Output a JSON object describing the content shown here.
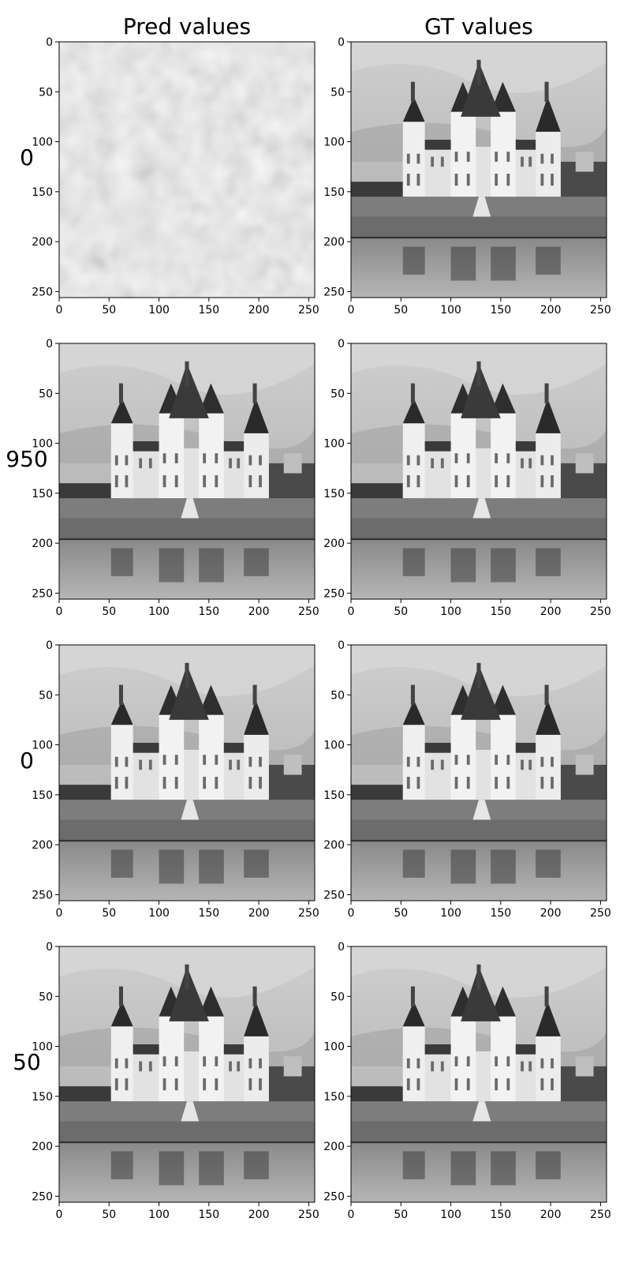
{
  "chart_data": {
    "type": "heatmap",
    "columns": [
      "Pred values",
      "GT values"
    ],
    "rows": [
      {
        "label": "0",
        "panels": [
          {
            "column": "Pred values",
            "content": "noise",
            "xlim": [
              0,
              256
            ],
            "ylim": [
              256,
              0
            ]
          },
          {
            "column": "GT values",
            "content": "castle",
            "xlim": [
              0,
              256
            ],
            "ylim": [
              256,
              0
            ]
          }
        ]
      },
      {
        "label": "950",
        "panels": [
          {
            "column": "Pred values",
            "content": "castle",
            "xlim": [
              0,
              256
            ],
            "ylim": [
              256,
              0
            ]
          },
          {
            "column": "GT values",
            "content": "castle",
            "xlim": [
              0,
              256
            ],
            "ylim": [
              256,
              0
            ]
          }
        ]
      },
      {
        "label": "0",
        "panels": [
          {
            "column": "Pred values",
            "content": "castle",
            "xlim": [
              0,
              256
            ],
            "ylim": [
              256,
              0
            ]
          },
          {
            "column": "GT values",
            "content": "castle",
            "xlim": [
              0,
              256
            ],
            "ylim": [
              256,
              0
            ]
          }
        ]
      },
      {
        "label": "50",
        "panels": [
          {
            "column": "Pred values",
            "content": "castle",
            "xlim": [
              0,
              256
            ],
            "ylim": [
              256,
              0
            ]
          },
          {
            "column": "GT values",
            "content": "castle",
            "xlim": [
              0,
              256
            ],
            "ylim": [
              256,
              0
            ]
          }
        ]
      }
    ],
    "x_ticks": [
      0,
      50,
      100,
      150,
      200,
      250
    ],
    "y_ticks": [
      0,
      50,
      100,
      150,
      200,
      250
    ],
    "colormap": "grayscale",
    "grid": false,
    "legend": "none"
  }
}
